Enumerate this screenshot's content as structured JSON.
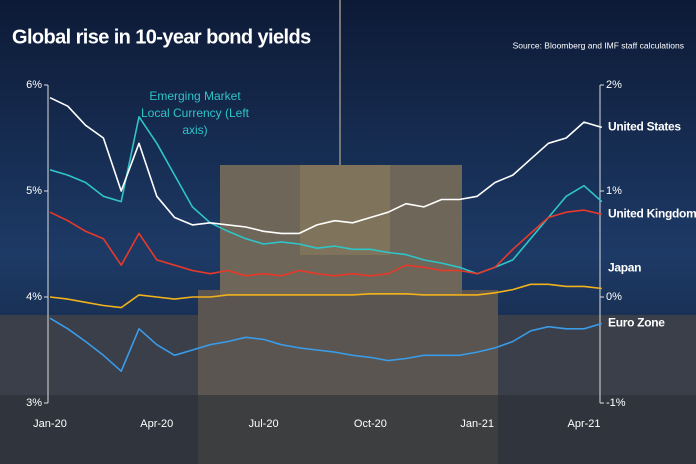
{
  "chart_data": {
    "type": "line",
    "title": "Global rise in 10-year bond yields",
    "source": "Source: Bloomberg and IMF staff calculations",
    "categories": [
      "Jan-20",
      null,
      null,
      null,
      null,
      null,
      "Apr-20",
      null,
      null,
      null,
      null,
      null,
      "Jul-20",
      null,
      null,
      null,
      null,
      null,
      "Oct-20",
      null,
      null,
      null,
      null,
      null,
      "Jan-21",
      null,
      null,
      null,
      null,
      null,
      "Apr-21",
      null
    ],
    "ylim": [
      3,
      6
    ],
    "yticks": [
      {
        "value": 3,
        "label": "3%"
      },
      {
        "value": 4,
        "label": "4%"
      },
      {
        "value": 5,
        "label": "5%"
      },
      {
        "value": 6,
        "label": "6%"
      }
    ],
    "y2lim": [
      -1,
      2
    ],
    "y2ticks": [
      {
        "value": -1,
        "label": "-1%"
      },
      {
        "value": 0,
        "label": "0%"
      },
      {
        "value": 1,
        "label": "1%"
      },
      {
        "value": 2,
        "label": "2%"
      }
    ],
    "series": [
      {
        "name": "Emerging Market Local Currency (Left axis)",
        "color": "#2ec4c8",
        "values": [
          5.2,
          5.15,
          5.08,
          4.95,
          4.9,
          5.7,
          5.45,
          5.15,
          4.85,
          4.7,
          4.62,
          4.55,
          4.5,
          4.52,
          4.5,
          4.46,
          4.48,
          4.45,
          4.45,
          4.42,
          4.4,
          4.35,
          4.32,
          4.28,
          4.22,
          4.28,
          4.35,
          4.55,
          4.75,
          4.95,
          5.05,
          4.9
        ]
      },
      {
        "name": "United States",
        "color": "#ffffff",
        "axis": "y2",
        "values": [
          1.88,
          1.8,
          1.62,
          1.5,
          1.0,
          1.45,
          0.95,
          0.75,
          0.68,
          0.7,
          0.68,
          0.66,
          0.62,
          0.6,
          0.6,
          0.68,
          0.72,
          0.7,
          0.75,
          0.8,
          0.88,
          0.85,
          0.92,
          0.92,
          0.95,
          1.08,
          1.15,
          1.3,
          1.45,
          1.5,
          1.65,
          1.6
        ]
      },
      {
        "name": "United Kingdom",
        "color": "#e8392a",
        "axis": "y2",
        "values": [
          0.8,
          0.72,
          0.62,
          0.55,
          0.3,
          0.6,
          0.35,
          0.3,
          0.25,
          0.22,
          0.25,
          0.2,
          0.22,
          0.2,
          0.25,
          0.22,
          0.2,
          0.22,
          0.2,
          0.22,
          0.3,
          0.28,
          0.25,
          0.25,
          0.22,
          0.28,
          0.45,
          0.6,
          0.75,
          0.8,
          0.82,
          0.78
        ]
      },
      {
        "name": "Japan",
        "color": "#f2b21b",
        "axis": "y2",
        "values": [
          0.0,
          -0.02,
          -0.05,
          -0.08,
          -0.1,
          0.02,
          0.0,
          -0.02,
          0.0,
          0.0,
          0.02,
          0.02,
          0.02,
          0.02,
          0.02,
          0.02,
          0.02,
          0.02,
          0.03,
          0.03,
          0.03,
          0.02,
          0.02,
          0.02,
          0.02,
          0.04,
          0.07,
          0.12,
          0.12,
          0.1,
          0.1,
          0.08
        ]
      },
      {
        "name": "Euro Zone",
        "color": "#3a9be8",
        "axis": "y2",
        "values": [
          -0.2,
          -0.3,
          -0.42,
          -0.55,
          -0.7,
          -0.3,
          -0.45,
          -0.55,
          -0.5,
          -0.45,
          -0.42,
          -0.38,
          -0.4,
          -0.45,
          -0.48,
          -0.5,
          -0.52,
          -0.55,
          -0.57,
          -0.6,
          -0.58,
          -0.55,
          -0.55,
          -0.55,
          -0.52,
          -0.48,
          -0.42,
          -0.32,
          -0.28,
          -0.3,
          -0.3,
          -0.25
        ]
      }
    ]
  }
}
